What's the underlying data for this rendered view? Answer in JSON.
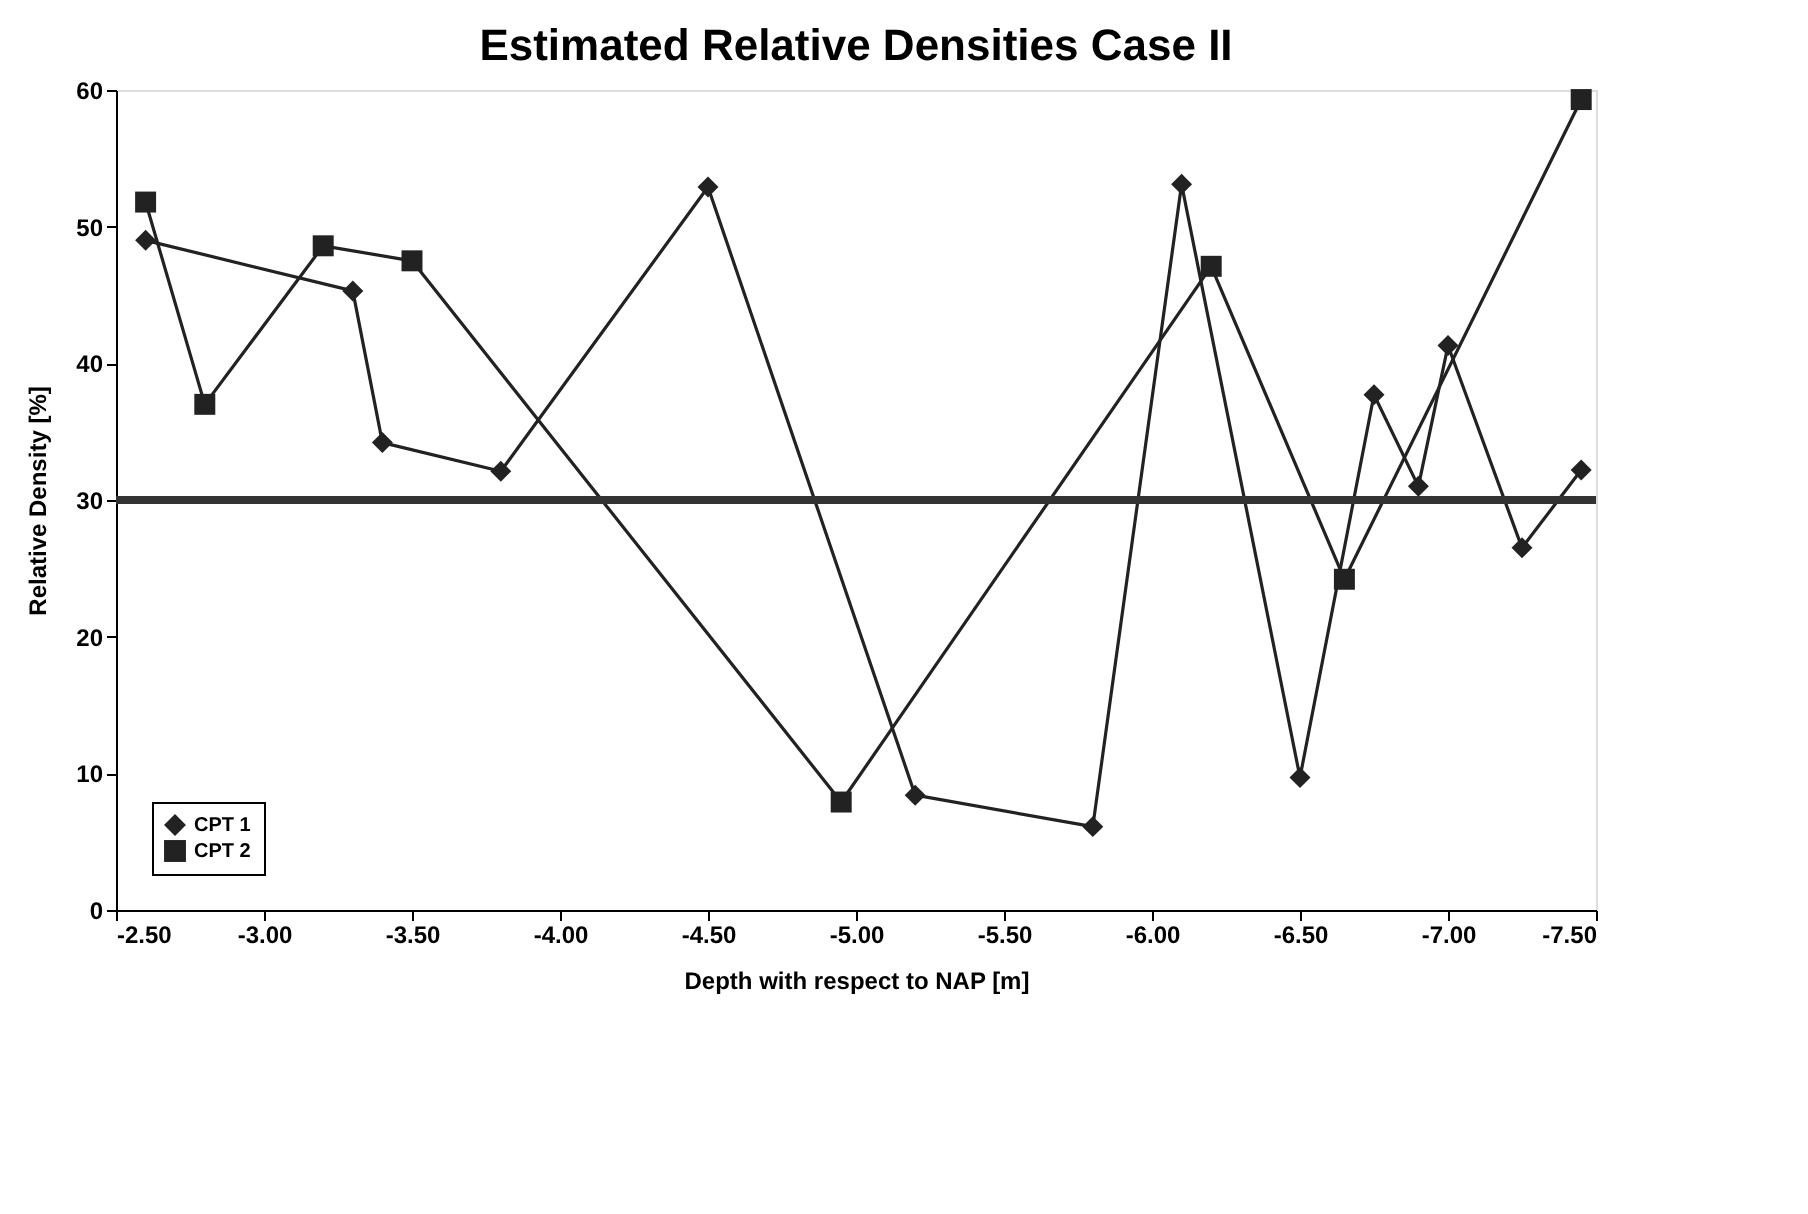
{
  "chart_data": {
    "type": "line",
    "title": "Estimated Relative Densities Case II",
    "xlabel": "Depth with respect to NAP [m]",
    "ylabel": "Relative Density [%]",
    "xlim": [
      -2.5,
      -7.5
    ],
    "xticks": [
      {
        "value": -2.5,
        "label": "-2.50"
      },
      {
        "value": -3,
        "label": "-3.00"
      },
      {
        "value": -3.5,
        "label": "-3.50"
      },
      {
        "value": -4,
        "label": "-4.00"
      },
      {
        "value": -4.5,
        "label": "-4.50"
      },
      {
        "value": -5,
        "label": "-5.00"
      },
      {
        "value": -5.5,
        "label": "-5.50"
      },
      {
        "value": -6,
        "label": "-6.00"
      },
      {
        "value": -6.5,
        "label": "-6.50"
      },
      {
        "value": -7,
        "label": "-7.00"
      },
      {
        "value": -7.5,
        "label": "-7.50"
      }
    ],
    "ylim": [
      0,
      60
    ],
    "yticks": [
      0,
      10,
      20,
      30,
      40,
      50,
      60
    ],
    "grid": false,
    "legend": "bottom left",
    "line_style": "solid",
    "ref_lines": [
      {
        "axis": "y",
        "value": 30,
        "color": "#333333"
      }
    ],
    "series": [
      {
        "name": "CPT 1",
        "color": "#222222",
        "marker": "diamond",
        "x": [
          -2.6,
          -3.3,
          -3.4,
          -3.8,
          -4.5,
          -5.2,
          -5.8,
          -6.1,
          -6.5,
          -6.75,
          -6.9,
          -7.0,
          -7.25,
          -7.45
        ],
        "values": [
          49,
          45.3,
          34.2,
          32.1,
          52.9,
          8.4,
          6.1,
          53.1,
          9.7,
          37.7,
          31,
          41.3,
          26.5,
          32.2
        ]
      },
      {
        "name": "CPT 2",
        "color": "#222222",
        "marker": "square",
        "x": [
          -2.6,
          -2.8,
          -3.2,
          -3.5,
          -4.95,
          -6.2,
          -6.65,
          -7.45
        ],
        "values": [
          51.8,
          37,
          48.6,
          47.5,
          7.9,
          47.1,
          24.2,
          59.3
        ]
      }
    ]
  }
}
